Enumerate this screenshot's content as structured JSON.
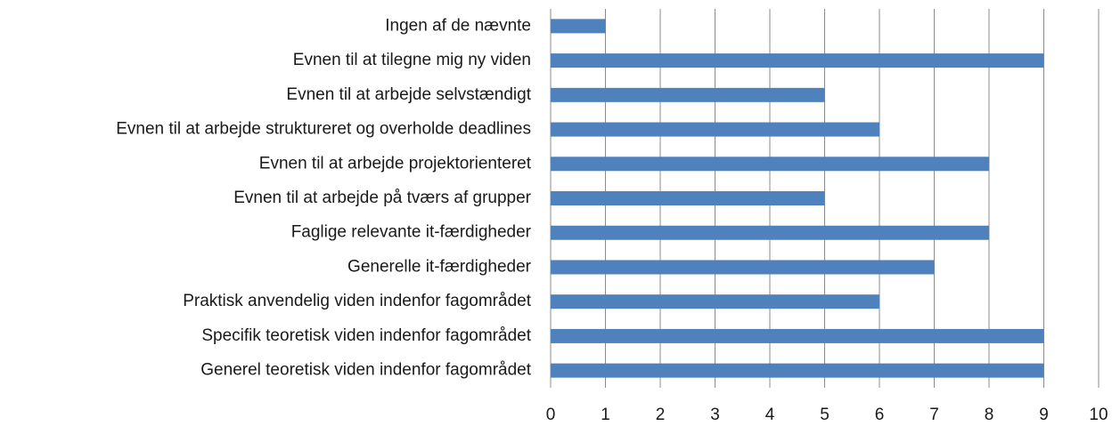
{
  "chart_data": {
    "type": "bar",
    "horizontal": true,
    "categories": [
      "Ingen af de nævnte",
      "Evnen til at tilegne mig ny viden",
      "Evnen til at arbejde selvstændigt",
      "Evnen til at arbejde struktureret og overholde deadlines",
      "Evnen til at arbejde projektorienteret",
      "Evnen til at arbejde på tværs af grupper",
      "Faglige relevante it-færdigheder",
      "Generelle it-færdigheder",
      "Praktisk anvendelig viden indenfor fagområdet",
      "Specifik teoretisk viden indenfor fagområdet",
      "Generel teoretisk viden indenfor fagområdet"
    ],
    "values": [
      1,
      9,
      5,
      6,
      8,
      5,
      8,
      7,
      6,
      9,
      9
    ],
    "color": "#4f81bd",
    "xlim": [
      0,
      10
    ],
    "xticks": [
      0,
      1,
      2,
      3,
      4,
      5,
      6,
      7,
      8,
      9,
      10
    ],
    "grid": true
  }
}
